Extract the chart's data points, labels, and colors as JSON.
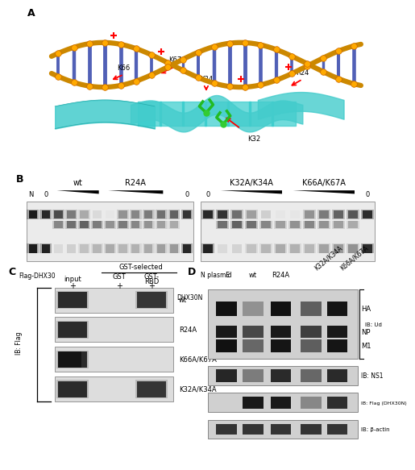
{
  "background_color": "#ffffff",
  "panel_A_bg": "#d8d8d8",
  "panel_B_bg": "#ffffff",
  "gel_bg": "#e8e8e8",
  "band_dark": "#1a1a1a",
  "band_mid": "#555555",
  "band_light": "#999999",
  "wb_bg": "#c8c8c8",
  "wb_bg2": "#e0e0e0",
  "B_left_labels": [
    "wt",
    "R24A"
  ],
  "B_right_labels": [
    "K32A/K34A",
    "K66A/K67A"
  ],
  "B_N_label": "N",
  "B_0_label": "0",
  "C_header": "GST-selected",
  "C_col1": "input",
  "C_col2": "GST",
  "C_col3": "GST-\nRBD",
  "C_dhx30n": "DHX30N",
  "C_flag_dhx30": "Flag-DHX30",
  "C_plus": "+",
  "C_ib_flag": "IB: Flag",
  "C_rows": [
    "wt",
    "R24A",
    "K66A/K67A",
    "K32A/K34A"
  ],
  "D_n_plasmid": "N plasmid",
  "D_cols": [
    "E",
    "wt",
    "R24A",
    "K32A/K34A",
    "K66A/K67A"
  ],
  "D_ib_ud": "IB: Ud",
  "D_rows": [
    "HA",
    "NP",
    "M1"
  ],
  "D_ib_ns1": "IB: NS1",
  "D_ib_flag": "IB: Flag (DHX30N)",
  "D_ib_actin": "IB: β-actin"
}
